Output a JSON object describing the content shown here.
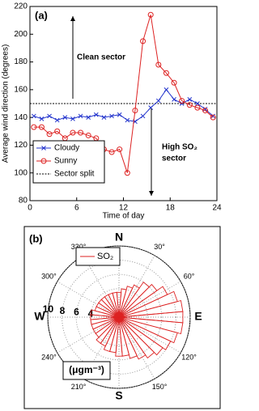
{
  "chart_data": [
    {
      "type": "line",
      "panel_label": "(a)",
      "xlabel": "Time of day",
      "ylabel": "Average wind direction (degrees)",
      "x": [
        0.5,
        1.5,
        2.5,
        3.5,
        4.5,
        5.5,
        6.5,
        7.5,
        8.5,
        9.5,
        10.5,
        11.5,
        12.5,
        13.5,
        14.5,
        15.5,
        16.5,
        17.5,
        18.5,
        19.5,
        20.5,
        21.5,
        22.5,
        23.5
      ],
      "series": [
        {
          "name": "Cloudy",
          "color": "#2233cc",
          "marker": "x",
          "values": [
            141,
            139,
            141,
            138,
            140,
            139,
            141,
            140,
            142,
            140,
            141,
            142,
            138,
            137,
            141,
            147,
            152,
            160,
            153,
            150,
            153,
            150,
            146,
            141
          ]
        },
        {
          "name": "Sunny",
          "color": "#dd2222",
          "marker": "o",
          "values": [
            133,
            133,
            128,
            130,
            125,
            129,
            129,
            127,
            125,
            117,
            115,
            117,
            100,
            145,
            195,
            214,
            178,
            172,
            165,
            152,
            149,
            147,
            145,
            140
          ]
        }
      ],
      "reference_line": {
        "name": "Sector split",
        "value": 150,
        "color": "#000000"
      },
      "annotations": [
        "Clean sector",
        "High SO₂",
        "sector"
      ],
      "xlim": [
        0,
        24
      ],
      "xticks": [
        0,
        6,
        12,
        18,
        24
      ],
      "ylim": [
        80,
        220
      ],
      "yticks": [
        80,
        100,
        120,
        140,
        160,
        180,
        200,
        220
      ],
      "legend": "lower left"
    },
    {
      "type": "rose",
      "panel_label": "(b)",
      "unit": "(μgm⁻³)",
      "series": [
        {
          "name": "SO₂",
          "color": "#dd2222",
          "theta": [
            0,
            10,
            20,
            30,
            40,
            50,
            60,
            70,
            80,
            90,
            100,
            110,
            120,
            130,
            140,
            150,
            160,
            170,
            180,
            190,
            200,
            210,
            220,
            230,
            240,
            250,
            260,
            270,
            280,
            290,
            300,
            310,
            320,
            330,
            340,
            350
          ],
          "values": [
            3.5,
            4,
            4.5,
            5,
            6,
            6.5,
            7.5,
            8.5,
            9,
            9,
            9,
            8.5,
            8,
            7.5,
            7,
            6.5,
            6,
            5.5,
            5.5,
            5,
            5,
            4.5,
            4.5,
            4,
            4,
            4,
            4,
            4,
            4,
            3.5,
            3.5,
            3.5,
            3.5,
            3.5,
            3.5,
            3.5
          ]
        }
      ],
      "bin_width": 10,
      "rlim": [
        0,
        10
      ],
      "rticks": [
        4,
        6,
        8,
        10
      ],
      "thetaticks": [
        {
          "value": 0,
          "label": "N"
        },
        {
          "value": 30,
          "label": "30°"
        },
        {
          "value": 60,
          "label": "60°"
        },
        {
          "value": 90,
          "label": "E"
        },
        {
          "value": 120,
          "label": "120°"
        },
        {
          "value": 150,
          "label": "150°"
        },
        {
          "value": 180,
          "label": "S"
        },
        {
          "value": 210,
          "label": "210°"
        },
        {
          "value": 240,
          "label": "240°"
        },
        {
          "value": 270,
          "label": "W"
        },
        {
          "value": 300,
          "label": "300°"
        },
        {
          "value": 330,
          "label": "330°"
        }
      ],
      "legend": "upper left"
    }
  ]
}
